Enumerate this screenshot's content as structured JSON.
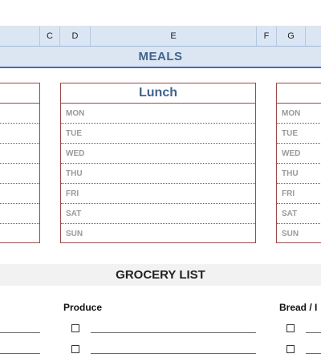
{
  "columns": [
    "C",
    "D",
    "E",
    "F",
    "G"
  ],
  "meals_header": "MEALS",
  "lunch": {
    "title": "Lunch",
    "days": [
      "MON",
      "TUE",
      "WED",
      "THU",
      "FRI",
      "SAT",
      "SUN"
    ]
  },
  "right_box": {
    "days": [
      "MON",
      "TUE",
      "WED",
      "THU",
      "FRI",
      "SAT",
      "SUN"
    ]
  },
  "grocery": {
    "title": "GROCERY LIST",
    "category_produce": "Produce",
    "category_bread": "Bread / I"
  },
  "colors": {
    "header_blue": "#41638f",
    "border_red": "#9b4a4a",
    "column_header_bg": "#dbe6f5"
  }
}
